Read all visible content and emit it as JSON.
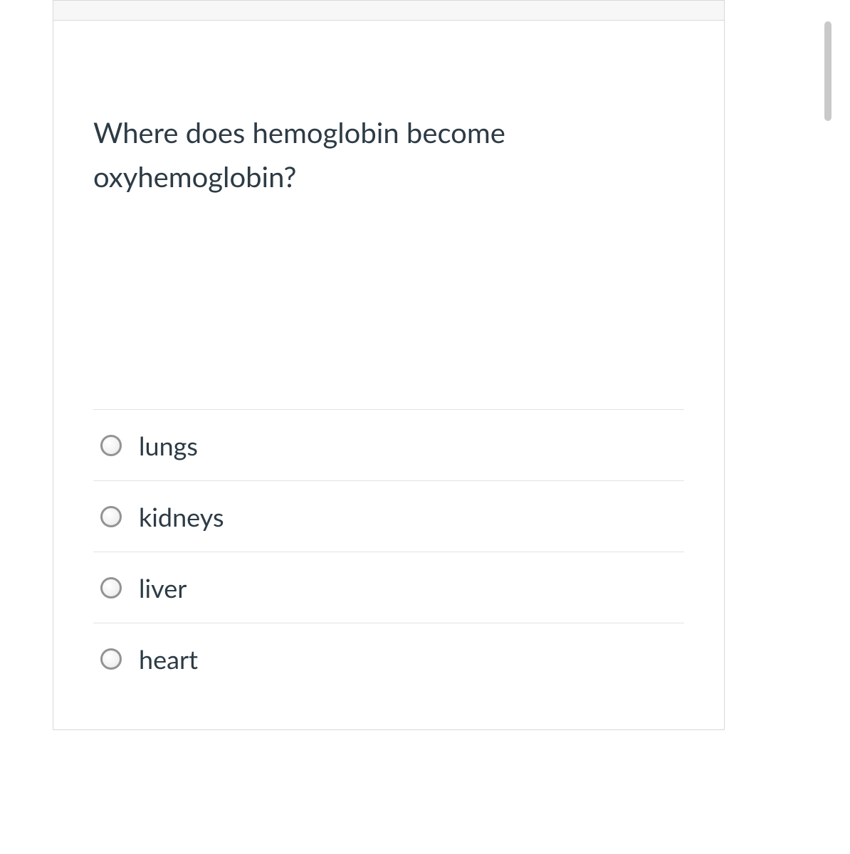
{
  "question": {
    "text": "Where does hemoglobin become oxyhemoglobin?",
    "text_color": "#2d3b45",
    "font_size_pt": 30
  },
  "options": [
    {
      "label": "lungs",
      "selected": false
    },
    {
      "label": "kidneys",
      "selected": false
    },
    {
      "label": "liver",
      "selected": false
    },
    {
      "label": "heart",
      "selected": false
    }
  ],
  "styling": {
    "card_border_color": "#d9d9d9",
    "option_divider_color": "#e2e2e2",
    "radio_border_color": "#939393",
    "scrollbar_color": "#c9c9c9",
    "header_strip_bg": "#f7f7f7",
    "background_color": "#ffffff"
  }
}
